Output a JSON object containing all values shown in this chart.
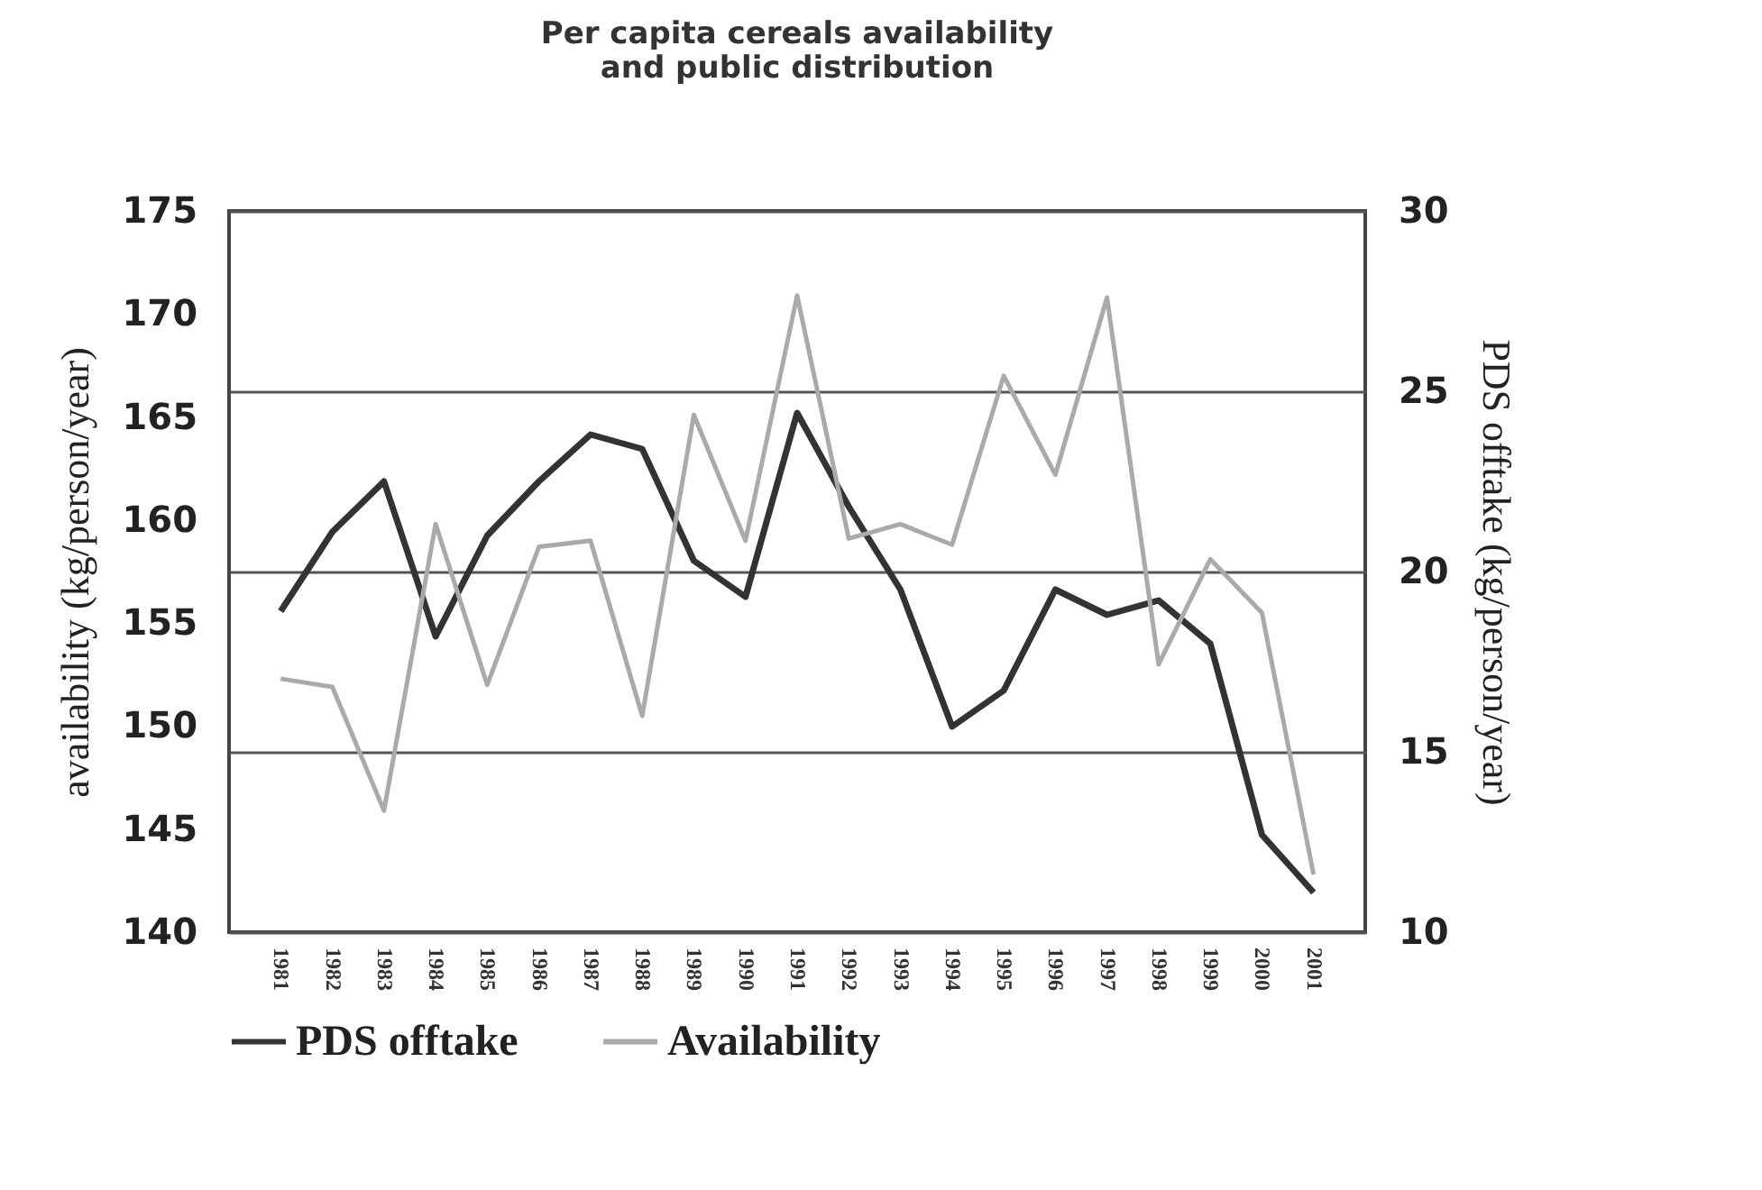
{
  "chart_data": {
    "type": "line",
    "title": "Per capita cereals availability\nand public distribution",
    "ylabel": "availability (kg/person/year)",
    "y2label": "PDS offtake (kg/person/year)",
    "categories": [
      "1981",
      "1982",
      "1983",
      "1984",
      "1985",
      "1986",
      "1987",
      "1988",
      "1989",
      "1990",
      "1991",
      "1992",
      "1993",
      "1994",
      "1995",
      "1996",
      "1997",
      "1998",
      "1999",
      "2000",
      "2001"
    ],
    "series": [
      {
        "name": "PDS offtake",
        "color": "#333333",
        "axis": "y2",
        "values": [
          18.9,
          21.1,
          22.5,
          18.2,
          21.0,
          22.5,
          23.8,
          23.4,
          20.3,
          19.3,
          24.4,
          21.8,
          19.5,
          15.7,
          16.7,
          19.5,
          18.8,
          19.2,
          18.0,
          12.7,
          11.1
        ]
      },
      {
        "name": "Availability",
        "color": "#aaaaaa",
        "values": [
          152.3,
          151.9,
          145.9,
          159.8,
          152.0,
          158.7,
          159.0,
          150.5,
          165.1,
          159.0,
          170.9,
          159.1,
          159.8,
          158.8,
          167.0,
          162.2,
          170.8,
          153.0,
          158.1,
          155.5,
          142.8
        ]
      }
    ],
    "ylim": [
      140,
      175
    ],
    "yticks": [
      140,
      145,
      150,
      155,
      160,
      165,
      170,
      175
    ],
    "y2lim": [
      10,
      30
    ],
    "y2ticks": [
      10,
      15,
      20,
      25,
      30
    ],
    "grid": "y2",
    "legend": "bottom",
    "marker": "none",
    "line_style": "solid"
  }
}
